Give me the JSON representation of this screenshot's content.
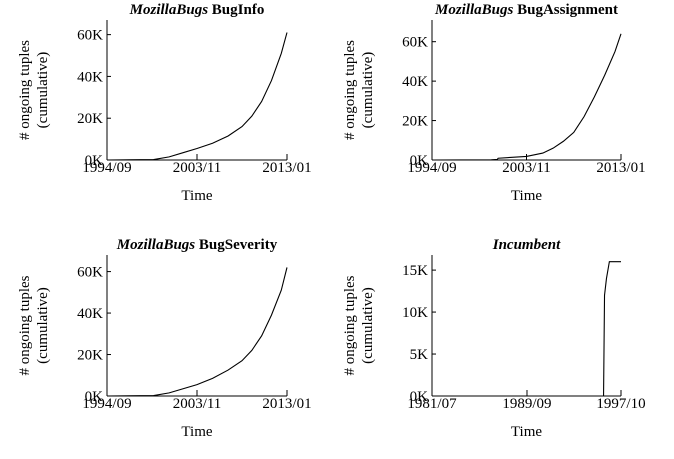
{
  "chart_data": [
    {
      "type": "line",
      "dataset": "MozillaBugs",
      "relation": "BugInfo",
      "xlabel": "Time",
      "ylabel": [
        "# ongoing tuples",
        "(cumulative)"
      ],
      "x": [
        "1994/09",
        "1999/06",
        "2001/01",
        "2002/06",
        "2003/11",
        "2005/06",
        "2007/01",
        "2008/06",
        "2009/06",
        "2010/06",
        "2011/06",
        "2012/06",
        "2013/01"
      ],
      "series": [
        {
          "color": "#000000",
          "values": [
            0,
            200,
            1500,
            3500,
            5500,
            8000,
            11500,
            16000,
            21000,
            28000,
            38000,
            51000,
            61000
          ]
        }
      ],
      "xlim": [
        "1994/09",
        "2013/01"
      ],
      "xticks": [
        "1994/09",
        "2003/11",
        "2013/01"
      ],
      "ylim": [
        0,
        67000
      ],
      "yticks": [
        {
          "value": 0,
          "label": "0K"
        },
        {
          "value": 20000,
          "label": "20K"
        },
        {
          "value": 40000,
          "label": "40K"
        },
        {
          "value": 60000,
          "label": "60K"
        }
      ]
    },
    {
      "type": "line",
      "dataset": "MozillaBugs",
      "relation": "BugAssignment",
      "xlabel": "Time",
      "ylabel": [
        "# ongoing tuples",
        "(cumulative)"
      ],
      "x": [
        "1994/09",
        "2000/06",
        "2001/01",
        "2001/02",
        "2003/11",
        "2005/06",
        "2006/06",
        "2007/06",
        "2008/06",
        "2009/06",
        "2010/06",
        "2011/06",
        "2012/06",
        "2013/01"
      ],
      "series": [
        {
          "color": "#000000",
          "values": [
            0,
            100,
            300,
            900,
            1800,
            3500,
            6000,
            9500,
            14000,
            22000,
            32000,
            43000,
            55000,
            64000
          ]
        }
      ],
      "xlim": [
        "1994/09",
        "2013/01"
      ],
      "xticks": [
        "1994/09",
        "2003/11",
        "2013/01"
      ],
      "ylim": [
        0,
        71000
      ],
      "yticks": [
        {
          "value": 0,
          "label": "0K"
        },
        {
          "value": 20000,
          "label": "20K"
        },
        {
          "value": 40000,
          "label": "40K"
        },
        {
          "value": 60000,
          "label": "60K"
        }
      ]
    },
    {
      "type": "line",
      "dataset": "MozillaBugs",
      "relation": "BugSeverity",
      "xlabel": "Time",
      "ylabel": [
        "# ongoing tuples",
        "(cumulative)"
      ],
      "x": [
        "1994/09",
        "1999/06",
        "2001/01",
        "2002/06",
        "2003/11",
        "2005/06",
        "2007/01",
        "2008/06",
        "2009/06",
        "2010/06",
        "2011/06",
        "2012/06",
        "2013/01"
      ],
      "series": [
        {
          "color": "#000000",
          "values": [
            0,
            200,
            1500,
            3500,
            5500,
            8500,
            12500,
            17000,
            22000,
            29000,
            39000,
            51000,
            62000
          ]
        }
      ],
      "xlim": [
        "1994/09",
        "2013/01"
      ],
      "xticks": [
        "1994/09",
        "2003/11",
        "2013/01"
      ],
      "ylim": [
        0,
        68000
      ],
      "yticks": [
        {
          "value": 0,
          "label": "0K"
        },
        {
          "value": 20000,
          "label": "20K"
        },
        {
          "value": 40000,
          "label": "40K"
        },
        {
          "value": 60000,
          "label": "60K"
        }
      ]
    },
    {
      "type": "line",
      "dataset": "Incumbent",
      "xlabel": "Time",
      "ylabel": [
        "# ongoing tuples",
        "(cumulative)"
      ],
      "x": [
        "1981/07",
        "1996/04",
        "1996/05",
        "1996/07",
        "1996/10",
        "1997/10"
      ],
      "series": [
        {
          "color": "#000000",
          "values": [
            0,
            0,
            12000,
            14000,
            16000,
            16000
          ]
        }
      ],
      "xlim": [
        "1981/07",
        "1997/10"
      ],
      "xticks": [
        "1981/07",
        "1989/09",
        "1997/10"
      ],
      "ylim": [
        0,
        16800
      ],
      "yticks": [
        {
          "value": 0,
          "label": "0K"
        },
        {
          "value": 5000,
          "label": "5K"
        },
        {
          "value": 10000,
          "label": "10K"
        },
        {
          "value": 15000,
          "label": "15K"
        }
      ]
    }
  ]
}
